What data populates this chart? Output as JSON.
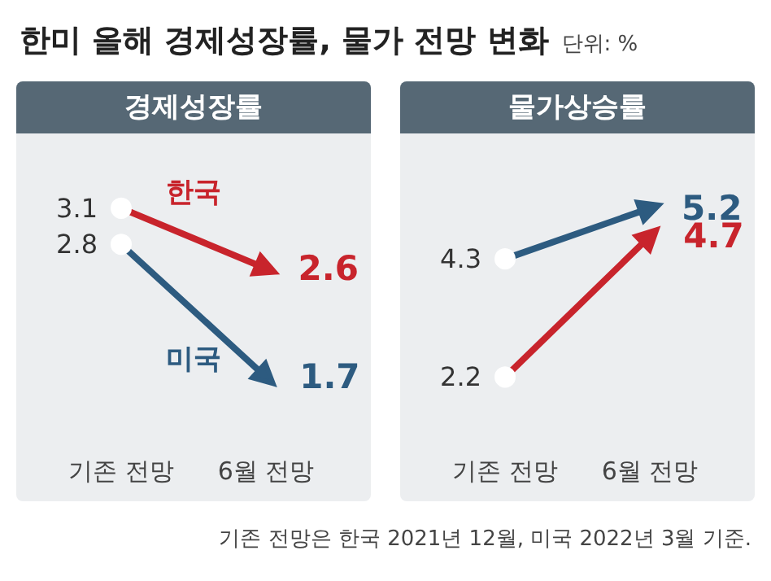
{
  "chart_data": [
    {
      "type": "line",
      "title": "경제성장률",
      "annotations": [
        "한미 올해 경제성장률, 물가 전망 변화",
        "단위: %"
      ],
      "categories": [
        "기존 전망",
        "6월 전망"
      ],
      "series": [
        {
          "name": "한국",
          "color": "#c8242c",
          "values": [
            3.1,
            2.6
          ]
        },
        {
          "name": "미국",
          "color": "#2d5b80",
          "values": [
            2.8,
            1.7
          ]
        }
      ],
      "data_labels": true,
      "marker": "circle",
      "line_style": "solid",
      "tick_labels": "x",
      "grid": false
    },
    {
      "type": "line",
      "title": "물가상승률",
      "annotations": [
        "기존 전망은 한국 2021년 12월, 미국 2022년 3월 기준."
      ],
      "categories": [
        "기존 전망",
        "6월 전망"
      ],
      "series": [
        {
          "color": "#c8242c",
          "values": [
            2.2,
            4.7
          ]
        },
        {
          "color": "#2d5b80",
          "values": [
            4.3,
            5.2
          ]
        }
      ],
      "data_labels": true,
      "marker": "circle",
      "line_style": "solid",
      "tick_labels": "x",
      "grid": false
    }
  ]
}
